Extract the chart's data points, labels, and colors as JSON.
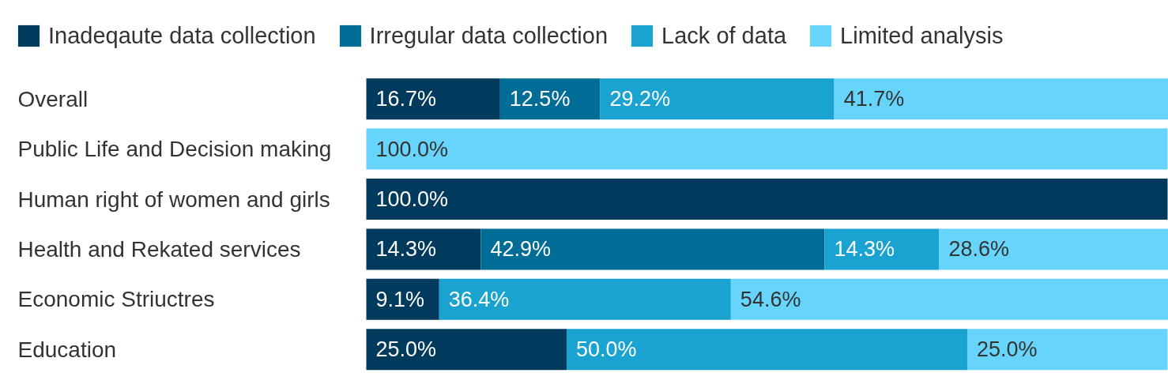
{
  "chart_data": {
    "type": "bar",
    "orientation": "horizontal",
    "stacked": true,
    "legend": "top left",
    "categories": [
      "Overall",
      "Public Life and Decision making",
      "Human right of women and girls",
      "Health and Rekated services",
      "Economic Striuctres",
      "Education"
    ],
    "series": [
      {
        "name": "Inadeqaute data collection",
        "color": "#003a5d",
        "values": [
          16.7,
          null,
          100.0,
          14.3,
          9.1,
          25.0
        ],
        "value_labels": [
          "16.7%",
          null,
          "100.0%",
          "14.3%",
          "9.1%",
          "25.0%"
        ]
      },
      {
        "name": "Irregular data collection",
        "color": "#006d96",
        "values": [
          12.5,
          null,
          null,
          42.9,
          null,
          null
        ],
        "value_labels": [
          "12.5%",
          null,
          null,
          "42.9%",
          null,
          null
        ]
      },
      {
        "name": "Lack of data",
        "color": "#1aa3d0",
        "values": [
          29.2,
          null,
          null,
          14.3,
          36.4,
          50.0
        ],
        "value_labels": [
          "29.2%",
          null,
          null,
          "14.3%",
          "36.4%",
          "50.0%"
        ]
      },
      {
        "name": "Limited analysis",
        "color": "#67d4fc",
        "values": [
          41.7,
          100.0,
          null,
          28.6,
          54.6,
          25.0
        ],
        "value_labels": [
          "41.7%",
          "100.0%",
          null,
          "28.6%",
          "54.6%",
          "25.0%"
        ]
      }
    ]
  }
}
